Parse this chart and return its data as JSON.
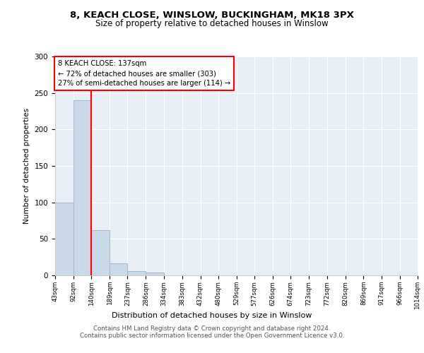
{
  "title1": "8, KEACH CLOSE, WINSLOW, BUCKINGHAM, MK18 3PX",
  "title2": "Size of property relative to detached houses in Winslow",
  "xlabel": "Distribution of detached houses by size in Winslow",
  "ylabel": "Number of detached properties",
  "bin_edges": [
    43,
    92,
    140,
    189,
    237,
    286,
    334,
    383,
    432,
    480,
    529,
    577,
    626,
    674,
    723,
    772,
    820,
    869,
    917,
    966,
    1014
  ],
  "bar_heights": [
    100,
    240,
    62,
    16,
    6,
    4,
    0,
    0,
    0,
    0,
    0,
    0,
    0,
    0,
    0,
    0,
    0,
    0,
    0,
    0
  ],
  "bar_color": "#c9d9e8",
  "bar_edge_color": "#a0b8d0",
  "red_line_x": 140,
  "annotation_text": "8 KEACH CLOSE: 137sqm\n← 72% of detached houses are smaller (303)\n27% of semi-detached houses are larger (114) →",
  "annotation_box_color": "white",
  "annotation_box_edge": "red",
  "ylim": [
    0,
    300
  ],
  "yticks": [
    0,
    50,
    100,
    150,
    200,
    250,
    300
  ],
  "background_color": "#e8eef5",
  "footer_text": "Contains HM Land Registry data © Crown copyright and database right 2024.\nContains public sector information licensed under the Open Government Licence v3.0.",
  "tick_labels": [
    "43sqm",
    "92sqm",
    "140sqm",
    "189sqm",
    "237sqm",
    "286sqm",
    "334sqm",
    "383sqm",
    "432sqm",
    "480sqm",
    "529sqm",
    "577sqm",
    "626sqm",
    "674sqm",
    "723sqm",
    "772sqm",
    "820sqm",
    "869sqm",
    "917sqm",
    "966sqm",
    "1014sqm"
  ]
}
